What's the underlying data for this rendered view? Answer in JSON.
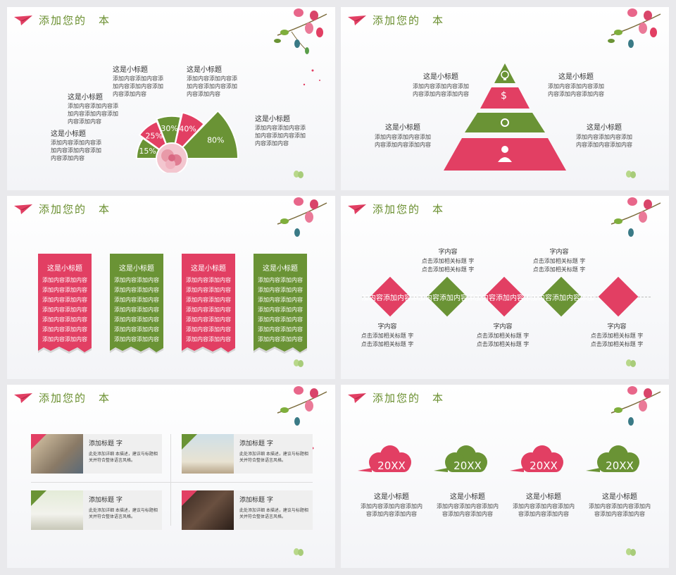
{
  "header_title": "添加您的　本",
  "slide1": {
    "pie": [
      {
        "label": "15%",
        "value": 15,
        "color": "#6a9335"
      },
      {
        "label": "25%",
        "value": 25,
        "color": "#e23f63"
      },
      {
        "label": "30%",
        "value": 30,
        "color": "#6a9335"
      },
      {
        "label": "40%",
        "value": 40,
        "color": "#e23f63"
      },
      {
        "label": "80%",
        "value": 80,
        "color": "#6a9335"
      }
    ],
    "callouts": [
      {
        "title": "这是小标题",
        "desc": "添加内容添加内容添加内容添加内容添加内容添加内容"
      },
      {
        "title": "这是小标题",
        "desc": "添加内容添加内容添加内容添加内容添加内容添加内容"
      },
      {
        "title": "这是小标题",
        "desc": "添加内容添加内容添加内容添加内容添加内容添加内容"
      },
      {
        "title": "这是小标题",
        "desc": "添加内容添加内容添加内容添加内容添加内容添加内容"
      },
      {
        "title": "这是小标题",
        "desc": "添加内容添加内容添加内容添加内容添加内容添加内容"
      }
    ]
  },
  "slide2": {
    "blocks": [
      {
        "title": "这是小标题",
        "desc": "添加内容添加内容添加内容添加内容添加内容"
      },
      {
        "title": "这是小标题",
        "desc": "添加内容添加内容添加内容添加内容添加内容"
      },
      {
        "title": "这是小标题",
        "desc": "添加内容添加内容添加内容添加内容添加内容"
      },
      {
        "title": "这是小标题",
        "desc": "添加内容添加内容添加内容添加内容添加内容"
      }
    ],
    "icons": [
      "lightbulb-icon",
      "dollar-icon",
      "gear-icon",
      "person-icon"
    ],
    "dollar": "$"
  },
  "slide3": {
    "cards": [
      {
        "title": "这是小标题",
        "lines": [
          "添加内容添加内容",
          "添加内容添加内容",
          "添加内容添加内容",
          "添加内容添加内容",
          "添加内容添加内容",
          "添加内容添加内容",
          "添加内容添加内容"
        ]
      },
      {
        "title": "这是小标题",
        "lines": [
          "添加内容添加内容",
          "添加内容添加内容",
          "添加内容添加内容",
          "添加内容添加内容",
          "添加内容添加内容",
          "添加内容添加内容",
          "添加内容添加内容"
        ]
      },
      {
        "title": "这是小标题",
        "lines": [
          "添加内容添加内容",
          "添加内容添加内容",
          "添加内容添加内容",
          "添加内容添加内容",
          "添加内容添加内容",
          "添加内容添加内容",
          "添加内容添加内容"
        ]
      },
      {
        "title": "这是小标题",
        "lines": [
          "添加内容添加内容",
          "添加内容添加内容",
          "添加内容添加内容",
          "添加内容添加内容",
          "添加内容添加内容",
          "添加内容添加内容",
          "添加内容添加内容"
        ]
      }
    ]
  },
  "slide4": {
    "diamond_text": "加内容添加内容添加内容添加内容添加内容添加内容添加内容添加内容添加",
    "items": [
      {
        "title": "字内容",
        "l1": "点击添加相关标题 字",
        "l2": "点击添加相关标题 字"
      },
      {
        "title": "字内容",
        "l1": "点击添加相关标题 字",
        "l2": "点击添加相关标题 字"
      },
      {
        "title": "字内容",
        "l1": "点击添加相关标题 字",
        "l2": "点击添加相关标题 字"
      },
      {
        "title": "字内容",
        "l1": "点击添加相关标题 字",
        "l2": "点击添加相关标题 字"
      },
      {
        "title": "字内容",
        "l1": "点击添加相关标题 字",
        "l2": "点击添加相关标题 字"
      }
    ]
  },
  "slide5": {
    "items": [
      {
        "title": "添加标题 字",
        "desc": "此处添加详细 本描述，建议与标题相关并符合整体语言风格。",
        "icon": "share-icon"
      },
      {
        "title": "添加标题 字",
        "desc": "此处添加详细 本描述，建议与标题相关并符合整体语言风格。",
        "icon": "cloud-icon"
      },
      {
        "title": "添加标题 字",
        "desc": "此处添加详细 本描述，建议与标题相关并符合整体语言风格。",
        "icon": "gear-icon"
      },
      {
        "title": "添加标题 字",
        "desc": "此处添加详细 本描述，建议与标题相关并符合整体语言风格。",
        "icon": "edit-icon"
      }
    ]
  },
  "slide6": {
    "items": [
      {
        "year": "20XX",
        "title": "这是小标题",
        "desc": "添加内容添加内容添加内容添加内容添加内容"
      },
      {
        "year": "20XX",
        "title": "这是小标题",
        "desc": "添加内容添加内容添加内容添加内容添加内容"
      },
      {
        "year": "20XX",
        "title": "这是小标题",
        "desc": "添加内容添加内容添加内容添加内容添加内容"
      },
      {
        "year": "20XX",
        "title": "这是小标题",
        "desc": "添加内容添加内容添加内容添加内容添加内容"
      }
    ]
  },
  "colors": {
    "pink": "#e23f63",
    "green": "#6a9335",
    "title_green": "#6a8f2f"
  }
}
